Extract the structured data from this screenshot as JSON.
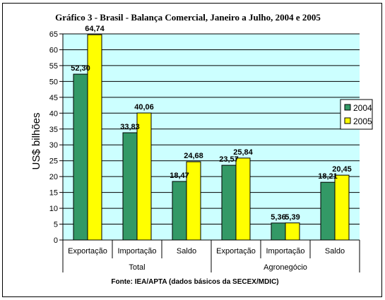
{
  "chart_data": {
    "type": "bar",
    "title": "Gráfico 3 - Brasil - Balança Comercial, Janeiro a Julho, 2004 e 2005",
    "ylabel": "US$ bilhões",
    "xlabel": "",
    "ylim": [
      0,
      65
    ],
    "ytick_step": 5,
    "grid": true,
    "legend_position": "right",
    "categories": [
      "Exportação",
      "Importação",
      "Saldo",
      "Exportação",
      "Importação",
      "Saldo"
    ],
    "groups": [
      {
        "label": "Total",
        "span": 3
      },
      {
        "label": "Agronegócio",
        "span": 3
      }
    ],
    "series": [
      {
        "name": "2004",
        "color": "#339966",
        "values": [
          52.3,
          33.83,
          18.47,
          23.57,
          5.36,
          18.21
        ],
        "labels": [
          "52,30",
          "33,83",
          "18,47",
          "23,57",
          "5,36",
          "18,21"
        ]
      },
      {
        "name": "2005",
        "color": "#ffff00",
        "values": [
          64.74,
          40.06,
          24.68,
          25.84,
          5.39,
          20.45
        ],
        "labels": [
          "64,74",
          "40,06",
          "24,68",
          "25,84",
          "5,39",
          "20,45"
        ]
      }
    ],
    "source": "Fonte: IEA/APTA (dados básicos da SECEX/MDIC)",
    "plot_background": "#ccffff"
  }
}
